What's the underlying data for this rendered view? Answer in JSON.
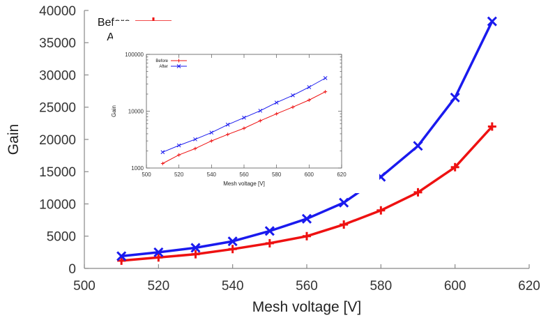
{
  "chart_data": [
    {
      "type": "line",
      "xlabel": "Mesh voltage [V]",
      "ylabel": "Gain",
      "xlim": [
        500,
        620
      ],
      "ylim": [
        0,
        40000
      ],
      "x_ticks": [
        500,
        520,
        540,
        560,
        580,
        600,
        620
      ],
      "y_ticks": [
        0,
        5000,
        10000,
        15000,
        20000,
        25000,
        30000,
        35000,
        40000
      ],
      "grid": false,
      "legend_position": "top-left",
      "x": [
        510,
        520,
        530,
        540,
        550,
        560,
        570,
        580,
        590,
        600,
        610
      ],
      "series": [
        {
          "name": "Before",
          "color": "#ee1111",
          "marker": "plus",
          "values": [
            1200,
            1700,
            2200,
            3000,
            3900,
            5000,
            6800,
            9000,
            11800,
            15700,
            22000
          ]
        },
        {
          "name": "After",
          "color": "#1a1aee",
          "marker": "cross",
          "values": [
            1900,
            2500,
            3200,
            4200,
            5800,
            7700,
            10200,
            14200,
            19000,
            26500,
            38300
          ]
        }
      ]
    },
    {
      "type": "line",
      "xlabel": "Mesh voltage [V]",
      "ylabel": "Gain",
      "xlim": [
        500,
        620
      ],
      "ylim": [
        1000,
        100000
      ],
      "yscale": "log",
      "x_ticks": [
        500,
        520,
        540,
        560,
        580,
        600,
        620
      ],
      "y_ticks": [
        1000,
        10000,
        100000
      ],
      "grid": false,
      "legend_position": "top-left",
      "x": [
        510,
        520,
        530,
        540,
        550,
        560,
        570,
        580,
        590,
        600,
        610
      ],
      "series": [
        {
          "name": "Before",
          "color": "#ee1111",
          "marker": "plus",
          "values": [
            1200,
            1700,
            2200,
            3000,
            3900,
            5000,
            6800,
            9000,
            11800,
            15700,
            22000
          ]
        },
        {
          "name": "After",
          "color": "#1a1aee",
          "marker": "cross",
          "values": [
            1900,
            2500,
            3200,
            4200,
            5800,
            7700,
            10200,
            14200,
            19000,
            26500,
            38300
          ]
        }
      ]
    }
  ]
}
